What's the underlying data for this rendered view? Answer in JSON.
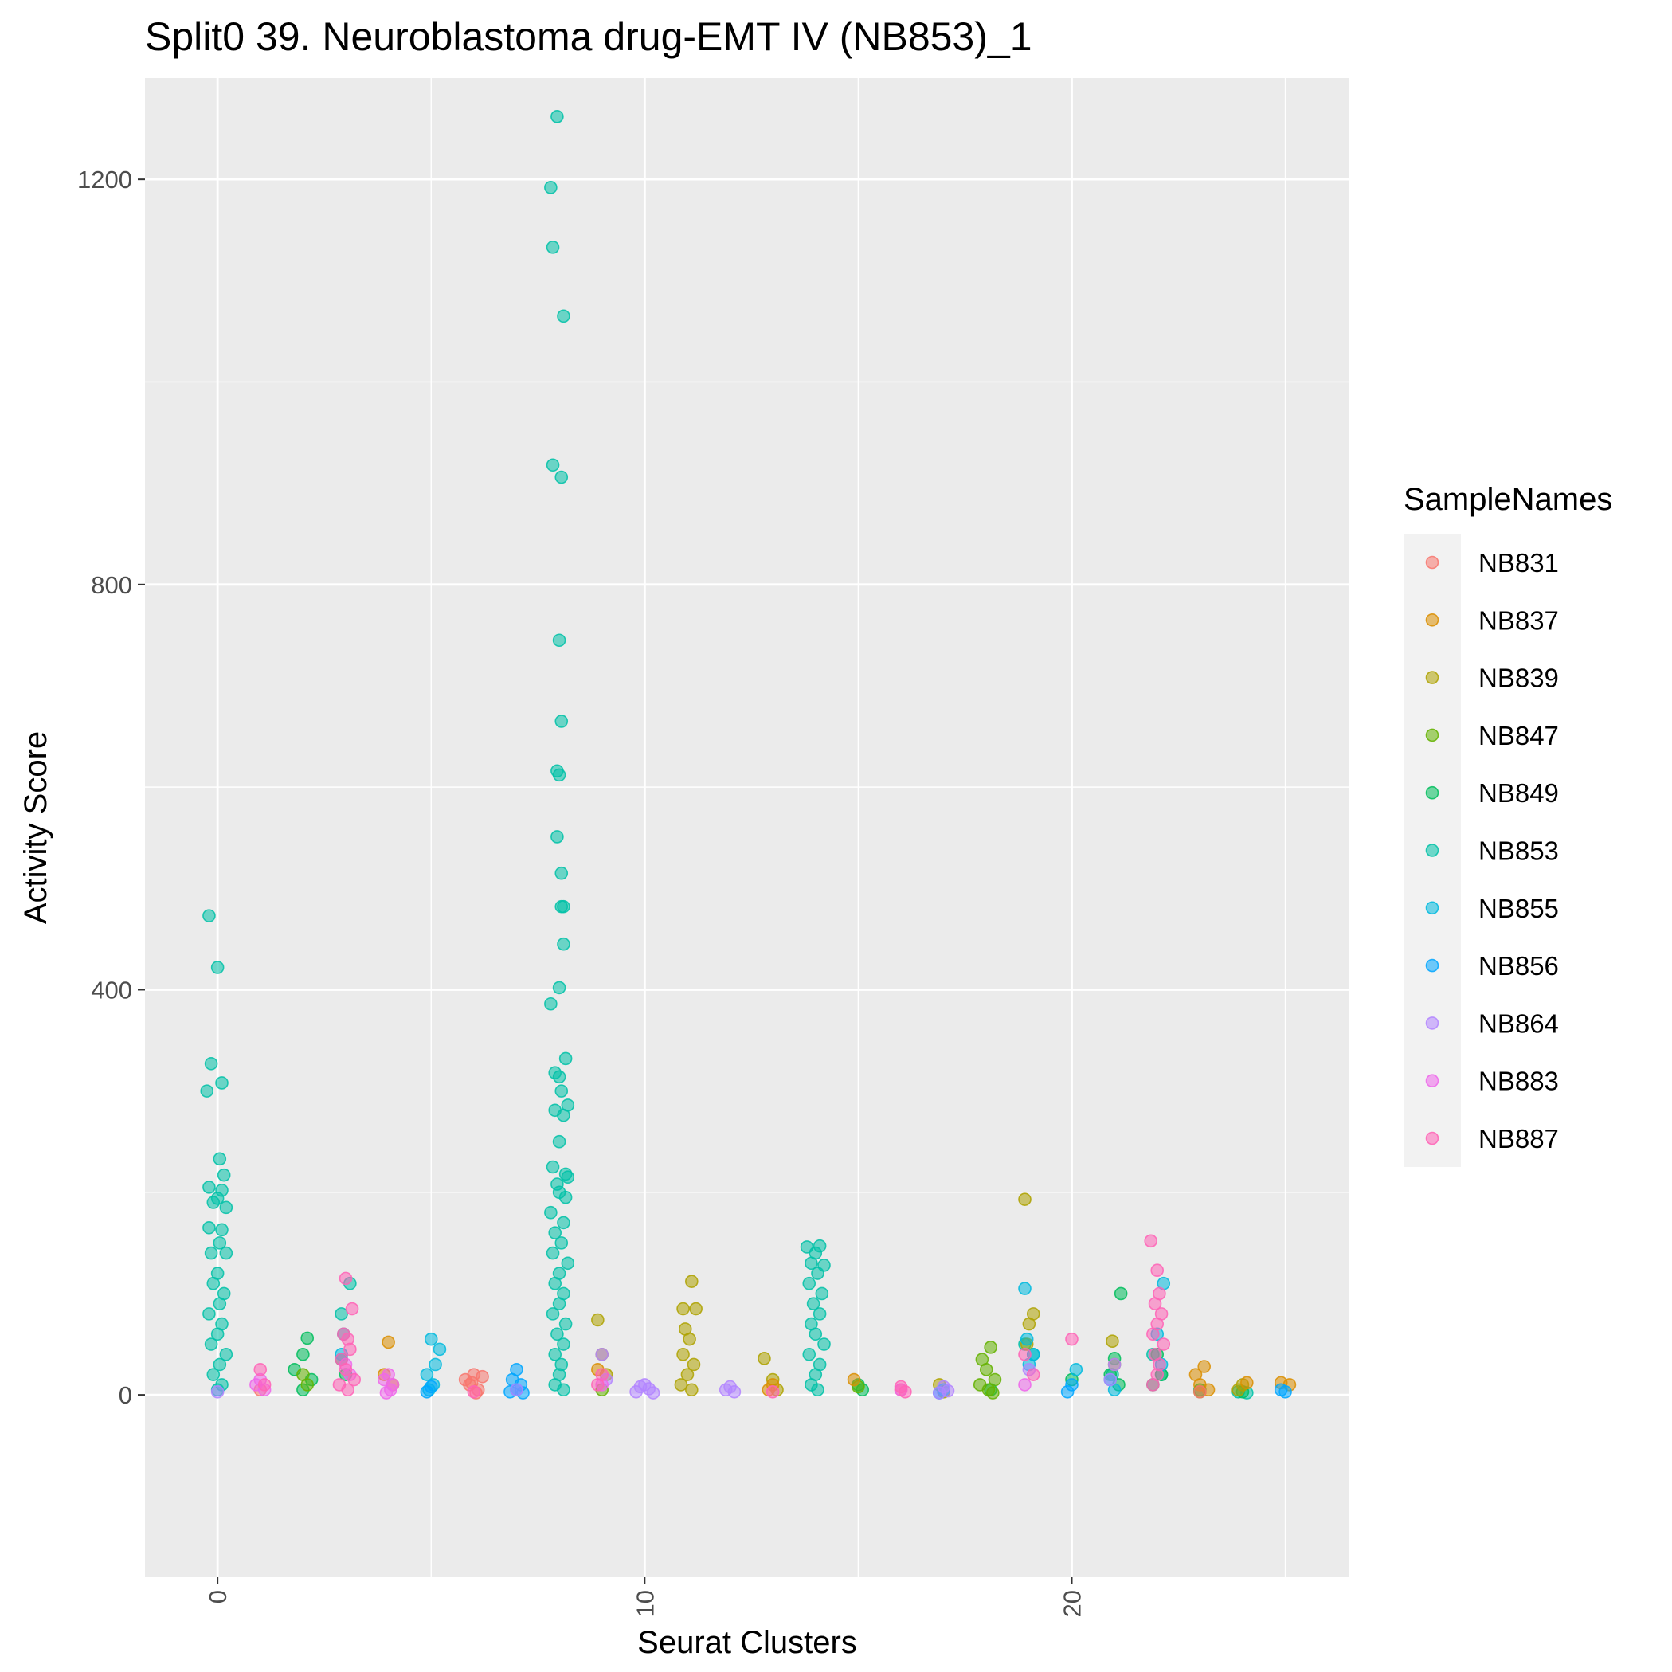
{
  "chart_data": {
    "type": "scatter",
    "title": "Split0 39. Neuroblastoma drug-EMT IV (NB853)_1",
    "xlabel": "Seurat Clusters",
    "ylabel": "Activity Score",
    "xlim": [
      -1.7,
      26.5
    ],
    "ylim": [
      -180,
      1300
    ],
    "x_ticks": [
      0,
      10,
      20
    ],
    "x_tick_labels": [
      "0",
      "10",
      "20"
    ],
    "y_ticks": [
      0,
      400,
      800,
      1200
    ],
    "y_tick_labels": [
      "0",
      "400",
      "800",
      "1200"
    ],
    "y_minor_ticks": [
      200,
      600,
      1000
    ],
    "grid": true,
    "panel_background": "#ebebeb",
    "point_alpha": 0.55,
    "legend": {
      "title": "SampleNames",
      "position": "right",
      "entries": [
        {
          "name": "NB831",
          "color": "#F8766D"
        },
        {
          "name": "NB837",
          "color": "#DB8E00"
        },
        {
          "name": "NB839",
          "color": "#AEA200"
        },
        {
          "name": "NB847",
          "color": "#64B200"
        },
        {
          "name": "NB849",
          "color": "#00BD5C"
        },
        {
          "name": "NB853",
          "color": "#00C1A7"
        },
        {
          "name": "NB855",
          "color": "#00BADE"
        },
        {
          "name": "NB856",
          "color": "#00A6FF"
        },
        {
          "name": "NB864",
          "color": "#B385FF"
        },
        {
          "name": "NB883",
          "color": "#EF67EB"
        },
        {
          "name": "NB887",
          "color": "#FF63B6"
        }
      ]
    },
    "series": [
      {
        "name": "NB853",
        "points": [
          [
            -0.2,
            473
          ],
          [
            0.0,
            422
          ],
          [
            -0.15,
            327
          ],
          [
            0.1,
            308
          ],
          [
            -0.25,
            300
          ],
          [
            0.05,
            233
          ],
          [
            0.15,
            217
          ],
          [
            -0.2,
            205
          ],
          [
            0.1,
            202
          ],
          [
            0.0,
            194
          ],
          [
            -0.1,
            190
          ],
          [
            0.2,
            185
          ],
          [
            0.1,
            163
          ],
          [
            -0.2,
            165
          ],
          [
            0.05,
            150
          ],
          [
            -0.15,
            140
          ],
          [
            0.2,
            140
          ],
          [
            0.0,
            120
          ],
          [
            -0.1,
            110
          ],
          [
            0.15,
            100
          ],
          [
            0.05,
            90
          ],
          [
            -0.2,
            80
          ],
          [
            0.1,
            70
          ],
          [
            0.0,
            60
          ],
          [
            -0.15,
            50
          ],
          [
            0.2,
            40
          ],
          [
            0.05,
            30
          ],
          [
            -0.1,
            20
          ],
          [
            0.1,
            10
          ],
          [
            0.0,
            5
          ],
          [
            7.95,
            1262
          ],
          [
            7.8,
            1192
          ],
          [
            7.85,
            1133
          ],
          [
            8.1,
            1065
          ],
          [
            7.85,
            918
          ],
          [
            8.05,
            906
          ],
          [
            8.0,
            745
          ],
          [
            8.05,
            665
          ],
          [
            7.95,
            616
          ],
          [
            8.0,
            612
          ],
          [
            7.95,
            551
          ],
          [
            8.05,
            515
          ],
          [
            8.1,
            482
          ],
          [
            8.05,
            482
          ],
          [
            8.1,
            445
          ],
          [
            8.0,
            402
          ],
          [
            7.8,
            386
          ],
          [
            8.15,
            332
          ],
          [
            7.9,
            318
          ],
          [
            8.0,
            314
          ],
          [
            8.05,
            300
          ],
          [
            8.2,
            286
          ],
          [
            7.9,
            281
          ],
          [
            8.1,
            276
          ],
          [
            8.0,
            250
          ],
          [
            7.85,
            225
          ],
          [
            8.15,
            218
          ],
          [
            8.2,
            215
          ],
          [
            7.95,
            208
          ],
          [
            8.0,
            200
          ],
          [
            8.15,
            195
          ],
          [
            7.8,
            180
          ],
          [
            8.1,
            170
          ],
          [
            7.9,
            160
          ],
          [
            8.05,
            150
          ],
          [
            7.85,
            140
          ],
          [
            8.2,
            130
          ],
          [
            8.0,
            120
          ],
          [
            7.9,
            110
          ],
          [
            8.1,
            100
          ],
          [
            8.0,
            90
          ],
          [
            7.85,
            80
          ],
          [
            8.15,
            70
          ],
          [
            7.95,
            60
          ],
          [
            8.1,
            50
          ],
          [
            7.9,
            40
          ],
          [
            8.05,
            30
          ],
          [
            8.0,
            20
          ],
          [
            7.9,
            10
          ],
          [
            8.1,
            5
          ],
          [
            13.8,
            146
          ],
          [
            14.1,
            147
          ],
          [
            14.0,
            140
          ],
          [
            13.9,
            130
          ],
          [
            14.2,
            128
          ],
          [
            14.05,
            120
          ],
          [
            13.85,
            110
          ],
          [
            14.15,
            100
          ],
          [
            13.95,
            90
          ],
          [
            14.1,
            80
          ],
          [
            13.9,
            70
          ],
          [
            14.0,
            60
          ],
          [
            14.2,
            50
          ],
          [
            13.85,
            40
          ],
          [
            14.1,
            30
          ],
          [
            14.0,
            20
          ],
          [
            13.9,
            10
          ],
          [
            14.05,
            5
          ],
          [
            2.9,
            80
          ],
          [
            3.1,
            110
          ],
          [
            2.95,
            60
          ],
          [
            18.9,
            50
          ],
          [
            19.1,
            40
          ],
          [
            20.95,
            20
          ],
          [
            21.9,
            40
          ],
          [
            22.1,
            20
          ],
          [
            23.9,
            3
          ],
          [
            24.1,
            2
          ]
        ]
      },
      {
        "name": "NB849",
        "points": [
          [
            2.1,
            56
          ],
          [
            2.0,
            40
          ],
          [
            1.8,
            25
          ],
          [
            2.2,
            15
          ],
          [
            2.0,
            5
          ],
          [
            2.9,
            35
          ],
          [
            3.0,
            20
          ],
          [
            20.0,
            15
          ],
          [
            21.0,
            36
          ],
          [
            21.15,
            100
          ],
          [
            20.9,
            20
          ],
          [
            21.1,
            10
          ],
          [
            22.0,
            40
          ],
          [
            22.1,
            20
          ],
          [
            21.9,
            10
          ],
          [
            15.0,
            10
          ],
          [
            15.1,
            5
          ],
          [
            23.0,
            5
          ],
          [
            24.0,
            3
          ],
          [
            18.1,
            5
          ]
        ]
      },
      {
        "name": "NB847",
        "points": [
          [
            18.1,
            47
          ],
          [
            17.9,
            35
          ],
          [
            18.0,
            25
          ],
          [
            18.2,
            15
          ],
          [
            17.85,
            10
          ],
          [
            18.05,
            5
          ],
          [
            18.15,
            2
          ],
          [
            2.0,
            20
          ],
          [
            2.1,
            10
          ],
          [
            9.0,
            5
          ],
          [
            15.0,
            8
          ],
          [
            23.0,
            3
          ]
        ]
      },
      {
        "name": "NB839",
        "points": [
          [
            18.9,
            193
          ],
          [
            19.1,
            80
          ],
          [
            19.0,
            70
          ],
          [
            18.95,
            50
          ],
          [
            11.1,
            112
          ],
          [
            10.9,
            85
          ],
          [
            11.2,
            85
          ],
          [
            10.95,
            65
          ],
          [
            11.05,
            55
          ],
          [
            10.9,
            40
          ],
          [
            11.15,
            30
          ],
          [
            11.0,
            20
          ],
          [
            10.85,
            10
          ],
          [
            11.1,
            5
          ],
          [
            12.8,
            36
          ],
          [
            13.0,
            15
          ],
          [
            13.1,
            5
          ],
          [
            8.9,
            74
          ],
          [
            9.0,
            40
          ],
          [
            9.1,
            20
          ],
          [
            20.95,
            53
          ],
          [
            21.0,
            30
          ],
          [
            24.0,
            10
          ],
          [
            23.9,
            5
          ],
          [
            16.9,
            10
          ],
          [
            17.0,
            3
          ]
        ]
      },
      {
        "name": "NB837",
        "points": [
          [
            4.0,
            52
          ],
          [
            3.9,
            20
          ],
          [
            4.1,
            10
          ],
          [
            23.1,
            28
          ],
          [
            22.9,
            20
          ],
          [
            23.0,
            10
          ],
          [
            23.2,
            5
          ],
          [
            24.9,
            12
          ],
          [
            25.1,
            10
          ],
          [
            24.1,
            12
          ],
          [
            13.0,
            10
          ],
          [
            12.9,
            5
          ],
          [
            14.9,
            15
          ],
          [
            8.9,
            25
          ]
        ]
      },
      {
        "name": "NB831",
        "points": [
          [
            6.0,
            20
          ],
          [
            5.8,
            15
          ],
          [
            6.2,
            18
          ],
          [
            5.9,
            10
          ],
          [
            6.1,
            5
          ],
          [
            6.05,
            2
          ],
          [
            5.95,
            12
          ],
          [
            1.0,
            5
          ],
          [
            16.0,
            5
          ],
          [
            23.0,
            3
          ]
        ]
      },
      {
        "name": "NB855",
        "points": [
          [
            5.0,
            55
          ],
          [
            5.2,
            45
          ],
          [
            5.1,
            30
          ],
          [
            4.9,
            20
          ],
          [
            5.05,
            10
          ],
          [
            4.95,
            5
          ],
          [
            18.9,
            105
          ],
          [
            18.95,
            55
          ],
          [
            19.1,
            40
          ],
          [
            19.0,
            30
          ],
          [
            22.0,
            60
          ],
          [
            22.1,
            30
          ],
          [
            22.15,
            110
          ],
          [
            20.1,
            25
          ],
          [
            20.9,
            15
          ],
          [
            21.0,
            5
          ],
          [
            2.9,
            40
          ]
        ]
      },
      {
        "name": "NB856",
        "points": [
          [
            7.0,
            25
          ],
          [
            6.9,
            15
          ],
          [
            7.1,
            10
          ],
          [
            7.0,
            5
          ],
          [
            6.85,
            3
          ],
          [
            7.15,
            2
          ],
          [
            5.0,
            8
          ],
          [
            4.9,
            3
          ],
          [
            20.0,
            10
          ],
          [
            19.9,
            3
          ],
          [
            25.0,
            3
          ],
          [
            24.9,
            5
          ],
          [
            17.0,
            5
          ],
          [
            16.9,
            2
          ]
        ]
      },
      {
        "name": "NB864",
        "points": [
          [
            10.0,
            10
          ],
          [
            9.9,
            8
          ],
          [
            10.1,
            6
          ],
          [
            9.8,
            3
          ],
          [
            10.2,
            2
          ],
          [
            12.0,
            8
          ],
          [
            11.9,
            5
          ],
          [
            12.1,
            3
          ],
          [
            17.0,
            8
          ],
          [
            17.1,
            4
          ],
          [
            16.9,
            2
          ],
          [
            9.0,
            40
          ],
          [
            9.1,
            15
          ],
          [
            21.0,
            30
          ],
          [
            20.9,
            15
          ],
          [
            19.0,
            25
          ],
          [
            7.0,
            5
          ],
          [
            0.0,
            3
          ]
        ]
      },
      {
        "name": "NB883",
        "points": [
          [
            4.0,
            20
          ],
          [
            3.9,
            15
          ],
          [
            4.1,
            10
          ],
          [
            4.05,
            5
          ],
          [
            3.95,
            2
          ],
          [
            1.0,
            15
          ],
          [
            0.9,
            10
          ],
          [
            1.1,
            5
          ],
          [
            3.0,
            30
          ],
          [
            3.1,
            20
          ],
          [
            16.0,
            5
          ],
          [
            18.9,
            10
          ],
          [
            9.0,
            10
          ]
        ]
      },
      {
        "name": "NB887",
        "points": [
          [
            3.0,
            115
          ],
          [
            3.15,
            85
          ],
          [
            2.95,
            60
          ],
          [
            3.05,
            55
          ],
          [
            3.1,
            45
          ],
          [
            2.9,
            35
          ],
          [
            3.0,
            25
          ],
          [
            3.2,
            15
          ],
          [
            2.85,
            10
          ],
          [
            3.05,
            5
          ],
          [
            21.85,
            152
          ],
          [
            22.0,
            123
          ],
          [
            22.05,
            100
          ],
          [
            21.95,
            90
          ],
          [
            22.1,
            80
          ],
          [
            22.0,
            70
          ],
          [
            21.9,
            60
          ],
          [
            22.15,
            50
          ],
          [
            21.95,
            40
          ],
          [
            22.05,
            30
          ],
          [
            22.0,
            20
          ],
          [
            21.9,
            10
          ],
          [
            20.0,
            55
          ],
          [
            18.9,
            40
          ],
          [
            19.1,
            20
          ],
          [
            1.0,
            25
          ],
          [
            1.1,
            10
          ],
          [
            9.0,
            20
          ],
          [
            8.9,
            10
          ],
          [
            16.0,
            8
          ],
          [
            16.1,
            3
          ],
          [
            6.0,
            3
          ],
          [
            13.0,
            3
          ]
        ]
      }
    ]
  }
}
